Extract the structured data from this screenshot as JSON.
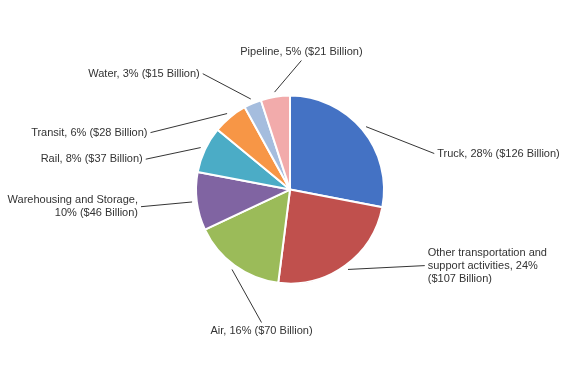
{
  "chart_data": {
    "type": "pie",
    "categories": [
      "Truck, 28% ($126 Billion)",
      "Other transportation and\nsupport activities, 24%\n($107 Billion)",
      "Air, 16% ($70 Billion)",
      "Warehousing and Storage,\n10% ($46 Billion)",
      "Rail, 8% ($37 Billion)",
      "Transit, 6% ($28 Billion)",
      "Water, 3% ($15 Billion)",
      "Pipeline, 5% ($21 Billion)"
    ],
    "values": [
      28,
      24,
      16,
      10,
      8,
      6,
      3,
      5
    ],
    "colors": [
      "#4472C4",
      "#C0504D",
      "#9BBB59",
      "#8064A2",
      "#4BACC6",
      "#F79646",
      "#A5BDDE",
      "#F2ABAB"
    ]
  }
}
